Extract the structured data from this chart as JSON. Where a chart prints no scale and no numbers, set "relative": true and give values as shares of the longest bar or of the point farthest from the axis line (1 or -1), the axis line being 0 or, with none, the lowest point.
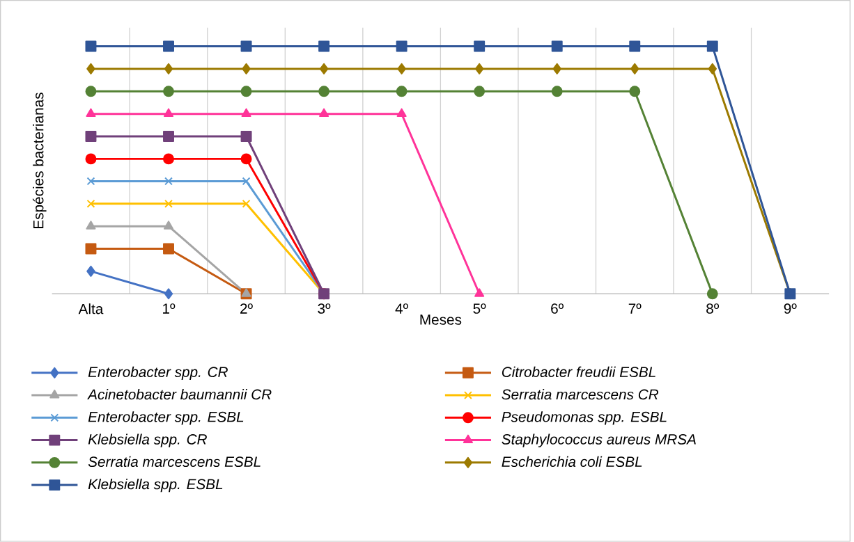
{
  "chart_data": {
    "type": "line",
    "relative": true,
    "xlabel": "Meses",
    "ylabel": "Espécies bacterianas",
    "categories": [
      "Alta",
      "1º",
      "2º",
      "3º",
      "4º",
      "5º",
      "6º",
      "7º",
      "8º",
      "9º"
    ],
    "grid": "x",
    "legend": "bottom",
    "tick_labels": "x",
    "line_style": "solid",
    "series": [
      {
        "name": "Enterobacter spp. CR",
        "color": "#4472c4",
        "marker": "diamond",
        "values": [
          0.091,
          0,
          null,
          null,
          null,
          null,
          null,
          null,
          null,
          null
        ]
      },
      {
        "name": "Citrobacter freudii ESBL",
        "color": "#c55a11",
        "marker": "square",
        "values": [
          0.182,
          0.182,
          0,
          null,
          null,
          null,
          null,
          null,
          null,
          null
        ]
      },
      {
        "name": "Acinetobacter baumannii CR",
        "color": "#a5a5a5",
        "marker": "triangle",
        "values": [
          0.273,
          0.273,
          0,
          null,
          null,
          null,
          null,
          null,
          null,
          null
        ]
      },
      {
        "name": "Serratia marcescens CR",
        "color": "#ffc000",
        "marker": "cross",
        "values": [
          0.364,
          0.364,
          0.364,
          0,
          null,
          null,
          null,
          null,
          null,
          null
        ]
      },
      {
        "name": "Enterobacter spp. ESBL",
        "color": "#5b9bd5",
        "marker": "cross",
        "values": [
          0.455,
          0.455,
          0.455,
          0,
          null,
          null,
          null,
          null,
          null,
          null
        ]
      },
      {
        "name": "Pseudomonas spp. ESBL",
        "color": "#ff0000",
        "marker": "circle",
        "values": [
          0.545,
          0.545,
          0.545,
          0,
          null,
          null,
          null,
          null,
          null,
          null
        ]
      },
      {
        "name": "Klebsiella spp. CR",
        "color": "#70407a",
        "marker": "square",
        "values": [
          0.636,
          0.636,
          0.636,
          0,
          null,
          null,
          null,
          null,
          null,
          null
        ]
      },
      {
        "name": "Staphylococcus aureus MRSA",
        "color": "#ff3399",
        "marker": "triangle",
        "values": [
          0.727,
          0.727,
          0.727,
          0.727,
          0.727,
          0,
          null,
          null,
          null,
          null
        ]
      },
      {
        "name": "Serratia marcescens ESBL",
        "color": "#548235",
        "marker": "circle",
        "values": [
          0.818,
          0.818,
          0.818,
          0.818,
          0.818,
          0.818,
          0.818,
          0.818,
          0,
          null
        ]
      },
      {
        "name": "Escherichia coli ESBL",
        "color": "#9c7a00",
        "marker": "diamond",
        "values": [
          0.909,
          0.909,
          0.909,
          0.909,
          0.909,
          0.909,
          0.909,
          0.909,
          0.909,
          0
        ]
      },
      {
        "name": "Klebsiella spp. ESBL",
        "color": "#2f5597",
        "marker": "square",
        "values": [
          1,
          1,
          1,
          1,
          1,
          1,
          1,
          1,
          1,
          0
        ]
      }
    ]
  }
}
